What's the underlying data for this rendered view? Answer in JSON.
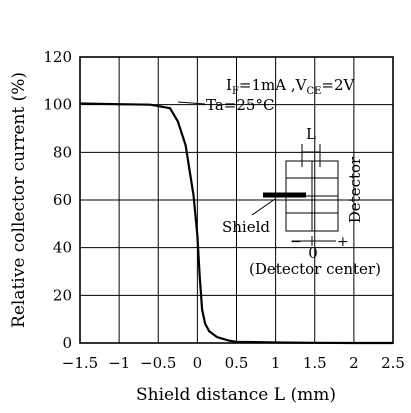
{
  "chart_data": {
    "type": "line",
    "xlabel": "Shield distance L (mm)",
    "ylabel": "Relative collector current (%)",
    "xlim": [
      -1.5,
      2.5
    ],
    "ylim": [
      0,
      120
    ],
    "x_ticks": [
      "−1.5",
      "−1",
      "−0.5",
      "0",
      "0.5",
      "1",
      "1.5",
      "2",
      "2.5"
    ],
    "x_tick_values": [
      -1.5,
      -1,
      -0.5,
      0,
      0.5,
      1,
      1.5,
      2,
      2.5
    ],
    "y_ticks": [
      "0",
      "20",
      "40",
      "60",
      "80",
      "100",
      "120"
    ],
    "y_tick_values": [
      0,
      20,
      40,
      60,
      80,
      100,
      120
    ],
    "grid": true,
    "series": [
      {
        "x": [
          -1.5,
          -1.0,
          -0.6,
          -0.35,
          -0.25,
          -0.15,
          -0.05,
          0.0,
          0.03,
          0.06,
          0.1,
          0.15,
          0.25,
          0.4,
          0.5,
          1.0,
          1.5,
          2.0,
          2.5
        ],
        "y": [
          100.5,
          100.2,
          100.0,
          98.5,
          93,
          83,
          62,
          45,
          28,
          14,
          8,
          5,
          2.5,
          1.0,
          0.5,
          0.2,
          0.1,
          0.0,
          0.0
        ]
      }
    ]
  },
  "annotations": {
    "conditions_line1": "IF=1mA ,VCE=2V",
    "conditions_line2": "Ta=25°C",
    "inset_L": "L",
    "inset_detector": "Detector",
    "inset_shield": "Shield",
    "inset_minus": "−",
    "inset_plus": "+",
    "inset_zero": "0",
    "inset_center": "(Detector center)"
  }
}
